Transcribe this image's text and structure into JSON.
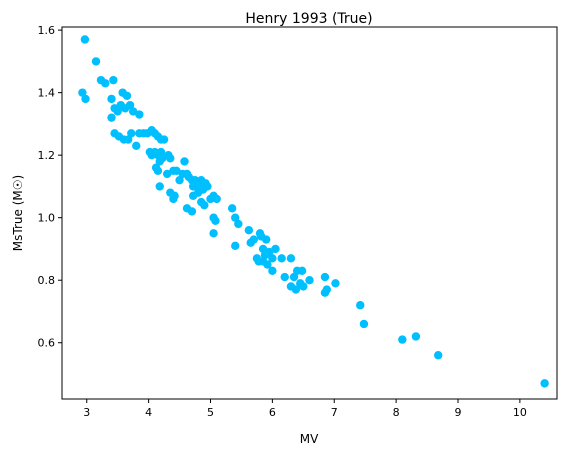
{
  "chart_data": {
    "type": "scatter",
    "title": "Henry 1993 (True)",
    "xlabel": "MV",
    "ylabel": "MsTrue (M☉)",
    "xlim": [
      2.6,
      10.6
    ],
    "ylim": [
      0.42,
      1.61
    ],
    "xticks": [
      3,
      4,
      5,
      6,
      7,
      8,
      9,
      10
    ],
    "yticks": [
      0.6,
      0.8,
      1.0,
      1.2,
      1.4,
      1.6
    ],
    "xtick_labels": [
      "3",
      "4",
      "5",
      "6",
      "7",
      "8",
      "9",
      "10"
    ],
    "ytick_labels": [
      "0.6",
      "0.8",
      "1.0",
      "1.2",
      "1.4",
      "1.6"
    ],
    "grid": false,
    "marker_color": "#00bfff",
    "series": [
      {
        "points": [
          [
            2.97,
            1.57
          ],
          [
            2.93,
            1.4
          ],
          [
            2.98,
            1.38
          ],
          [
            3.15,
            1.5
          ],
          [
            3.23,
            1.44
          ],
          [
            3.3,
            1.43
          ],
          [
            3.43,
            1.44
          ],
          [
            3.4,
            1.38
          ],
          [
            3.45,
            1.35
          ],
          [
            3.4,
            1.32
          ],
          [
            3.5,
            1.34
          ],
          [
            3.55,
            1.36
          ],
          [
            3.58,
            1.4
          ],
          [
            3.65,
            1.39
          ],
          [
            3.62,
            1.35
          ],
          [
            3.7,
            1.36
          ],
          [
            3.75,
            1.34
          ],
          [
            3.85,
            1.33
          ],
          [
            3.45,
            1.27
          ],
          [
            3.52,
            1.26
          ],
          [
            3.6,
            1.25
          ],
          [
            3.67,
            1.25
          ],
          [
            3.72,
            1.27
          ],
          [
            3.8,
            1.23
          ],
          [
            3.85,
            1.27
          ],
          [
            3.92,
            1.27
          ],
          [
            3.98,
            1.27
          ],
          [
            4.05,
            1.28
          ],
          [
            4.1,
            1.27
          ],
          [
            4.15,
            1.26
          ],
          [
            4.2,
            1.25
          ],
          [
            4.25,
            1.25
          ],
          [
            4.02,
            1.21
          ],
          [
            4.05,
            1.2
          ],
          [
            4.1,
            1.21
          ],
          [
            4.15,
            1.2
          ],
          [
            4.2,
            1.21
          ],
          [
            4.22,
            1.19
          ],
          [
            4.18,
            1.18
          ],
          [
            4.32,
            1.2
          ],
          [
            4.35,
            1.19
          ],
          [
            4.12,
            1.16
          ],
          [
            4.15,
            1.15
          ],
          [
            4.3,
            1.14
          ],
          [
            4.4,
            1.15
          ],
          [
            4.45,
            1.15
          ],
          [
            4.5,
            1.12
          ],
          [
            4.55,
            1.14
          ],
          [
            4.58,
            1.18
          ],
          [
            4.62,
            1.14
          ],
          [
            4.65,
            1.13
          ],
          [
            4.7,
            1.12
          ],
          [
            4.72,
            1.1
          ],
          [
            4.75,
            1.12
          ],
          [
            4.78,
            1.1
          ],
          [
            4.82,
            1.11
          ],
          [
            4.85,
            1.12
          ],
          [
            4.88,
            1.09
          ],
          [
            4.92,
            1.11
          ],
          [
            4.95,
            1.1
          ],
          [
            4.18,
            1.1
          ],
          [
            4.35,
            1.08
          ],
          [
            4.4,
            1.06
          ],
          [
            4.42,
            1.07
          ],
          [
            4.72,
            1.07
          ],
          [
            4.8,
            1.08
          ],
          [
            4.9,
            1.04
          ],
          [
            5.0,
            1.06
          ],
          [
            5.05,
            1.07
          ],
          [
            5.1,
            1.06
          ],
          [
            4.62,
            1.03
          ],
          [
            4.7,
            1.02
          ],
          [
            4.85,
            1.05
          ],
          [
            5.05,
            1.0
          ],
          [
            5.08,
            0.99
          ],
          [
            5.05,
            0.95
          ],
          [
            5.35,
            1.03
          ],
          [
            5.4,
            1.0
          ],
          [
            5.45,
            0.98
          ],
          [
            5.4,
            0.91
          ],
          [
            5.62,
            0.96
          ],
          [
            5.65,
            0.92
          ],
          [
            5.7,
            0.93
          ],
          [
            5.8,
            0.95
          ],
          [
            5.82,
            0.94
          ],
          [
            5.85,
            0.9
          ],
          [
            5.88,
            0.88
          ],
          [
            5.9,
            0.93
          ],
          [
            5.75,
            0.87
          ],
          [
            5.78,
            0.86
          ],
          [
            5.85,
            0.86
          ],
          [
            5.92,
            0.85
          ],
          [
            5.95,
            0.89
          ],
          [
            6.0,
            0.87
          ],
          [
            6.05,
            0.9
          ],
          [
            6.0,
            0.83
          ],
          [
            6.15,
            0.87
          ],
          [
            6.2,
            0.81
          ],
          [
            6.3,
            0.87
          ],
          [
            6.35,
            0.81
          ],
          [
            6.4,
            0.83
          ],
          [
            6.48,
            0.83
          ],
          [
            6.3,
            0.78
          ],
          [
            6.38,
            0.77
          ],
          [
            6.45,
            0.79
          ],
          [
            6.5,
            0.78
          ],
          [
            6.6,
            0.8
          ],
          [
            6.85,
            0.81
          ],
          [
            6.88,
            0.77
          ],
          [
            6.85,
            0.76
          ],
          [
            7.02,
            0.79
          ],
          [
            7.42,
            0.72
          ],
          [
            7.48,
            0.66
          ],
          [
            8.1,
            0.61
          ],
          [
            8.32,
            0.62
          ],
          [
            8.68,
            0.56
          ],
          [
            10.4,
            0.47
          ]
        ]
      }
    ]
  }
}
